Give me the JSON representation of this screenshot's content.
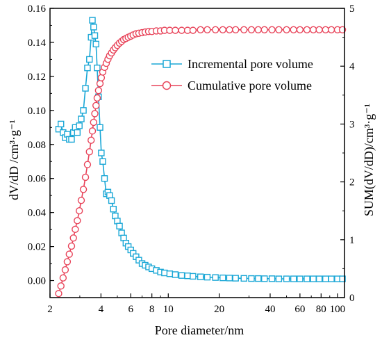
{
  "chart_data": {
    "type": "line",
    "title": "",
    "xlabel": "Pore diameter/nm",
    "ylabel_left": "dV/dD /cm³·g⁻¹",
    "ylabel_right": "SUM(dV/dD)/cm³·g⁻¹",
    "x_scale": "log",
    "xlim": [
      2,
      110
    ],
    "ylim_left": [
      -0.01,
      0.16
    ],
    "ylim_right": [
      0,
      5
    ],
    "x_ticks": [
      2,
      4,
      6,
      8,
      10,
      20,
      40,
      60,
      80,
      100
    ],
    "x_tick_labels": [
      "2",
      "4",
      "6",
      "8",
      "10",
      "20",
      "40",
      "60",
      "80",
      "100"
    ],
    "y_left_ticks": [
      0.0,
      0.02,
      0.04,
      0.06,
      0.08,
      0.1,
      0.12,
      0.14,
      0.16
    ],
    "y_left_tick_labels": [
      "0.00",
      "0.02",
      "0.04",
      "0.06",
      "0.08",
      "0.10",
      "0.12",
      "0.14",
      "0.16"
    ],
    "y_right_ticks": [
      0,
      1,
      2,
      3,
      4,
      5
    ],
    "y_right_tick_labels": [
      "0",
      "1",
      "2",
      "3",
      "4",
      "5"
    ],
    "grid": false,
    "legend_position": "top-right",
    "series": [
      {
        "name": "Incremental pore volume",
        "axis": "left",
        "color": "#1aa7d6",
        "marker": "square",
        "x": [
          2.25,
          2.32,
          2.39,
          2.46,
          2.53,
          2.6,
          2.68,
          2.75,
          2.82,
          2.9,
          2.98,
          3.06,
          3.15,
          3.24,
          3.33,
          3.42,
          3.5,
          3.56,
          3.62,
          3.68,
          3.74,
          3.8,
          3.87,
          3.95,
          4.02,
          4.1,
          4.2,
          4.3,
          4.4,
          4.5,
          4.62,
          4.74,
          4.86,
          5.0,
          5.15,
          5.3,
          5.45,
          5.62,
          5.8,
          6.0,
          6.2,
          6.45,
          6.7,
          7.0,
          7.3,
          7.65,
          8.0,
          8.5,
          9.0,
          9.5,
          10.2,
          11,
          12,
          13,
          14,
          15.5,
          17,
          19,
          21,
          23,
          25,
          28,
          31,
          34,
          37,
          41,
          45,
          50,
          55,
          60,
          66,
          72,
          78,
          85,
          92,
          100,
          107
        ],
        "y": [
          0.089,
          0.092,
          0.087,
          0.084,
          0.086,
          0.083,
          0.083,
          0.087,
          0.09,
          0.087,
          0.091,
          0.095,
          0.1,
          0.113,
          0.125,
          0.13,
          0.143,
          0.153,
          0.149,
          0.144,
          0.139,
          0.125,
          0.108,
          0.09,
          0.075,
          0.07,
          0.06,
          0.051,
          0.052,
          0.05,
          0.047,
          0.042,
          0.038,
          0.035,
          0.032,
          0.028,
          0.025,
          0.022,
          0.02,
          0.018,
          0.016,
          0.014,
          0.012,
          0.01,
          0.009,
          0.008,
          0.007,
          0.006,
          0.005,
          0.0045,
          0.004,
          0.0035,
          0.003,
          0.0028,
          0.0025,
          0.0022,
          0.002,
          0.0018,
          0.0016,
          0.0015,
          0.0014,
          0.0013,
          0.0012,
          0.0012,
          0.0011,
          0.0011,
          0.001,
          0.001,
          0.001,
          0.001,
          0.001,
          0.001,
          0.001,
          0.001,
          0.001,
          0.001,
          0.001
        ]
      },
      {
        "name": "Cumulative pore volume",
        "axis": "right",
        "color": "#e8445a",
        "marker": "circle",
        "x": [
          2.25,
          2.32,
          2.39,
          2.46,
          2.53,
          2.6,
          2.68,
          2.75,
          2.82,
          2.9,
          2.98,
          3.06,
          3.15,
          3.24,
          3.33,
          3.42,
          3.5,
          3.56,
          3.62,
          3.68,
          3.74,
          3.8,
          3.87,
          3.95,
          4.02,
          4.1,
          4.2,
          4.3,
          4.4,
          4.5,
          4.62,
          4.74,
          4.86,
          5.0,
          5.15,
          5.3,
          5.45,
          5.62,
          5.8,
          6.0,
          6.2,
          6.45,
          6.7,
          7.0,
          7.3,
          7.65,
          8.0,
          8.5,
          9.0,
          9.5,
          10.2,
          11,
          12,
          13,
          14,
          15.5,
          17,
          19,
          21,
          23,
          25,
          28,
          31,
          34,
          37,
          41,
          45,
          50,
          55,
          60,
          66,
          72,
          78,
          85,
          92,
          100,
          107
        ],
        "y": [
          0.07,
          0.2,
          0.34,
          0.48,
          0.62,
          0.75,
          0.89,
          1.03,
          1.18,
          1.33,
          1.5,
          1.68,
          1.87,
          2.08,
          2.3,
          2.52,
          2.72,
          2.88,
          3.03,
          3.18,
          3.32,
          3.45,
          3.58,
          3.7,
          3.8,
          3.9,
          3.98,
          4.05,
          4.12,
          4.18,
          4.23,
          4.28,
          4.32,
          4.36,
          4.4,
          4.43,
          4.46,
          4.48,
          4.5,
          4.52,
          4.54,
          4.56,
          4.57,
          4.58,
          4.59,
          4.6,
          4.6,
          4.61,
          4.61,
          4.62,
          4.62,
          4.62,
          4.62,
          4.62,
          4.62,
          4.63,
          4.63,
          4.63,
          4.63,
          4.63,
          4.63,
          4.63,
          4.63,
          4.63,
          4.63,
          4.63,
          4.63,
          4.63,
          4.63,
          4.63,
          4.63,
          4.63,
          4.63,
          4.63,
          4.63,
          4.63,
          4.63
        ]
      }
    ]
  }
}
